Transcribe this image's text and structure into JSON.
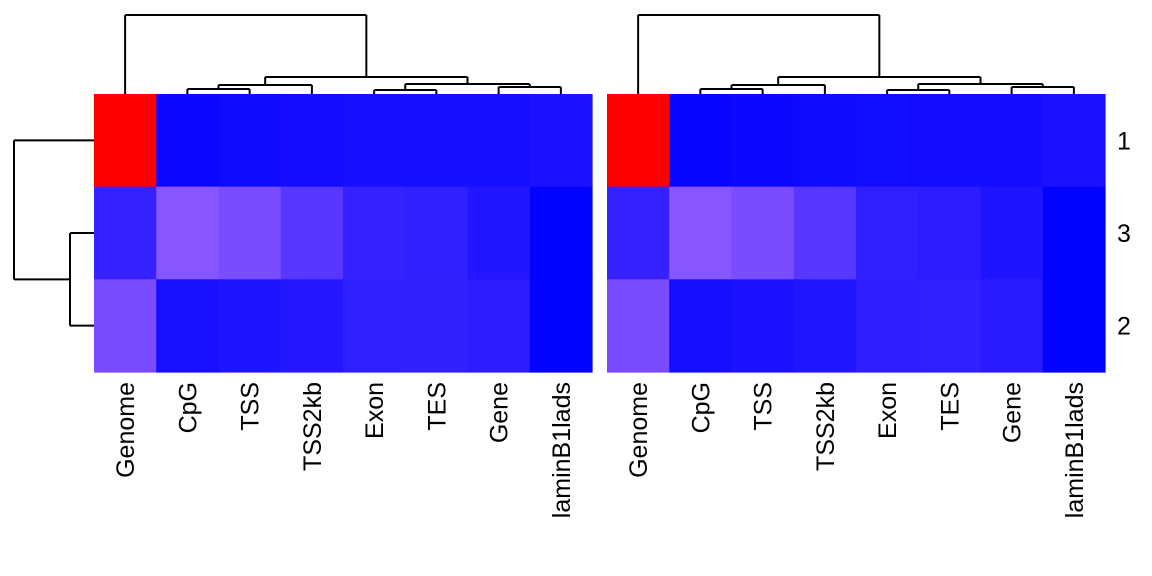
{
  "chart_data": [
    {
      "type": "heatmap",
      "title": "",
      "xlabel": "",
      "ylabel": "",
      "columns": [
        "Genome",
        "CpG",
        "TSS",
        "TSS2kb",
        "Exon",
        "TES",
        "Gene",
        "laminB1lads"
      ],
      "rows": [
        "1",
        "3",
        "2"
      ],
      "show_row_labels": false,
      "show_row_dendrogram": true,
      "row_dendrogram_merges": [
        [
          "3",
          "2"
        ],
        [
          "1",
          "3+2"
        ]
      ],
      "column_dendrogram_merges": [
        [
          "Exon",
          "TES"
        ],
        [
          "Gene",
          "laminB1lads"
        ],
        [
          "CpG",
          "TSS"
        ],
        [
          "Exon+TES",
          "Gene+laminB1lads"
        ],
        [
          "CpG+TSS",
          "TSS2kb"
        ],
        [
          "CpG+TSS+TSS2kb",
          "Exon+TES+Gene+laminB1lads"
        ],
        [
          "Genome",
          "rest"
        ]
      ],
      "color_scale": {
        "low": "#0000ff",
        "high": "#ff0000",
        "mid": "#ffffff"
      },
      "values": [
        [
          1.0,
          0.05,
          0.06,
          0.08,
          0.09,
          0.09,
          0.09,
          0.12
        ],
        [
          0.22,
          0.56,
          0.5,
          0.36,
          0.22,
          0.2,
          0.14,
          0.01
        ],
        [
          0.5,
          0.1,
          0.13,
          0.15,
          0.2,
          0.21,
          0.18,
          0.01
        ]
      ]
    },
    {
      "type": "heatmap",
      "title": "",
      "xlabel": "",
      "ylabel": "",
      "columns": [
        "Genome",
        "CpG",
        "TSS",
        "TSS2kb",
        "Exon",
        "TES",
        "Gene",
        "laminB1lads"
      ],
      "rows": [
        "1",
        "3",
        "2"
      ],
      "show_row_labels": true,
      "show_row_dendrogram": false,
      "column_dendrogram_merges": [
        [
          "Exon",
          "TES"
        ],
        [
          "Gene",
          "laminB1lads"
        ],
        [
          "CpG",
          "TSS"
        ],
        [
          "Exon+TES",
          "Gene+laminB1lads"
        ],
        [
          "CpG+TSS",
          "TSS2kb"
        ],
        [
          "CpG+TSS+TSS2kb",
          "Exon+TES+Gene+laminB1lads"
        ],
        [
          "Genome",
          "rest"
        ]
      ],
      "color_scale": {
        "low": "#0000ff",
        "high": "#ff0000",
        "mid": "#ffffff"
      },
      "values": [
        [
          1.0,
          0.03,
          0.05,
          0.06,
          0.07,
          0.08,
          0.08,
          0.11
        ],
        [
          0.22,
          0.56,
          0.5,
          0.36,
          0.2,
          0.18,
          0.13,
          0.01
        ],
        [
          0.5,
          0.09,
          0.12,
          0.14,
          0.19,
          0.2,
          0.17,
          0.01
        ]
      ]
    }
  ]
}
